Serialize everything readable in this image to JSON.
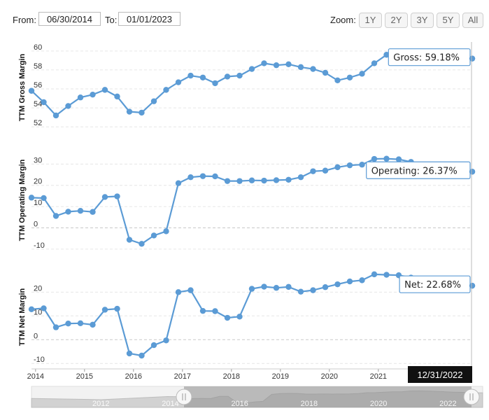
{
  "range": {
    "from_label": "From:",
    "from_value": "06/30/2014",
    "to_label": "To:",
    "to_value": "01/01/2023"
  },
  "zoom": {
    "label": "Zoom:",
    "buttons": [
      "1Y",
      "2Y",
      "3Y",
      "5Y",
      "All"
    ]
  },
  "colors": {
    "line": "#5b9bd5",
    "grid": "#e6e6e6",
    "zero": "#c8c8c8",
    "navigator_fill": "#8c8c8c"
  },
  "hover": {
    "date_label": "12/31/2022"
  },
  "x_axis": {
    "ticks": [
      "2014",
      "2015",
      "2016",
      "2017",
      "2018",
      "2019",
      "2020",
      "2021",
      "2022"
    ]
  },
  "navigator": {
    "ticks": [
      "2012",
      "2014",
      "2016",
      "2018",
      "2020",
      "2022"
    ],
    "handle_icon": "grip-handle-icon"
  },
  "chart_data": [
    {
      "type": "line",
      "ylabel": "TTM Gross Margin",
      "yticks": [
        52,
        54,
        56,
        58,
        60
      ],
      "ylim": [
        51.5,
        60.8
      ],
      "grid": true,
      "tooltip": "Gross: 59.18%",
      "x": [
        "2013-12",
        "2014-03",
        "2014-06",
        "2014-09",
        "2014-12",
        "2015-03",
        "2015-06",
        "2015-09",
        "2015-12",
        "2016-03",
        "2016-06",
        "2016-09",
        "2016-12",
        "2017-03",
        "2017-06",
        "2017-09",
        "2017-12",
        "2018-03",
        "2018-06",
        "2018-09",
        "2018-12",
        "2019-03",
        "2019-06",
        "2019-09",
        "2019-12",
        "2020-03",
        "2020-06",
        "2020-09",
        "2020-12",
        "2021-03",
        "2021-06",
        "2021-09",
        "2021-12",
        "2022-03",
        "2022-06",
        "2022-09",
        "2022-12"
      ],
      "series": [
        {
          "values": [
            55.8,
            54.6,
            53.2,
            54.2,
            55.1,
            55.4,
            55.9,
            55.2,
            53.6,
            53.5,
            54.7,
            55.9,
            56.7,
            57.4,
            57.2,
            56.6,
            57.3,
            57.4,
            58.1,
            58.7,
            58.5,
            58.6,
            58.3,
            58.1,
            57.7,
            56.9,
            57.2,
            57.6,
            58.7,
            59.6,
            59.6,
            59.7,
            59.8,
            59.9,
            59.9,
            59.7,
            59.2
          ]
        }
      ]
    },
    {
      "type": "line",
      "ylabel": "TTM Operating Margin",
      "yticks": [
        -10,
        0,
        10,
        20,
        30
      ],
      "ylim": [
        -12,
        38
      ],
      "grid": true,
      "tooltip": "Operating: 26.37%",
      "x": [
        "2013-12",
        "2014-03",
        "2014-06",
        "2014-09",
        "2014-12",
        "2015-03",
        "2015-06",
        "2015-09",
        "2015-12",
        "2016-03",
        "2016-06",
        "2016-09",
        "2016-12",
        "2017-03",
        "2017-06",
        "2017-09",
        "2017-12",
        "2018-03",
        "2018-06",
        "2018-09",
        "2018-12",
        "2019-03",
        "2019-06",
        "2019-09",
        "2019-12",
        "2020-03",
        "2020-06",
        "2020-09",
        "2020-12",
        "2021-03",
        "2021-06",
        "2021-09",
        "2021-12",
        "2022-03",
        "2022-06",
        "2022-09",
        "2022-12"
      ],
      "series": [
        {
          "values": [
            14.2,
            14.0,
            5.6,
            7.6,
            8.0,
            7.5,
            14.5,
            14.8,
            -5.6,
            -7.5,
            -3.6,
            -1.6,
            21.0,
            23.8,
            24.3,
            24.2,
            22.0,
            22.0,
            22.3,
            22.2,
            22.4,
            22.6,
            23.8,
            26.6,
            26.9,
            28.5,
            29.4,
            29.7,
            32.4,
            32.5,
            32.2,
            31.0,
            29.6,
            28.5,
            27.8,
            27.2,
            26.4
          ]
        }
      ]
    },
    {
      "type": "line",
      "ylabel": "TTM Net Margin",
      "yticks": [
        -10,
        0,
        10,
        20
      ],
      "ylim": [
        -12,
        31
      ],
      "grid": true,
      "tooltip": "Net: 22.68%",
      "x": [
        "2013-12",
        "2014-03",
        "2014-06",
        "2014-09",
        "2014-12",
        "2015-03",
        "2015-06",
        "2015-09",
        "2015-12",
        "2016-03",
        "2016-06",
        "2016-09",
        "2016-12",
        "2017-03",
        "2017-06",
        "2017-09",
        "2017-12",
        "2018-03",
        "2018-06",
        "2018-09",
        "2018-12",
        "2019-03",
        "2019-06",
        "2019-09",
        "2019-12",
        "2020-03",
        "2020-06",
        "2020-09",
        "2020-12",
        "2021-03",
        "2021-06",
        "2021-09",
        "2021-12",
        "2022-03",
        "2022-06",
        "2022-09",
        "2022-12"
      ],
      "series": [
        {
          "values": [
            12.8,
            13.2,
            5.2,
            6.8,
            6.9,
            6.3,
            12.6,
            13.0,
            -5.8,
            -6.7,
            -2.3,
            -0.3,
            20.0,
            20.8,
            12.1,
            12.0,
            9.2,
            9.7,
            21.4,
            22.3,
            21.8,
            22.2,
            20.2,
            20.8,
            22.1,
            23.3,
            24.5,
            25.0,
            27.5,
            27.3,
            27.1,
            26.1,
            25.6,
            25.0,
            24.6,
            23.9,
            22.7
          ]
        }
      ]
    }
  ]
}
